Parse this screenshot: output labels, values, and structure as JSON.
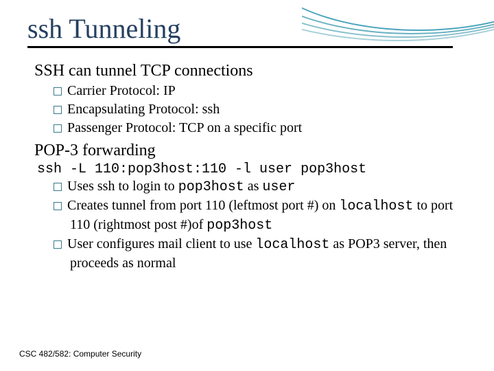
{
  "slide": {
    "title": "ssh Tunneling",
    "section1": {
      "heading": "SSH can tunnel TCP connections",
      "items": [
        "Carrier Protocol: IP",
        "Encapsulating Protocol: ssh",
        "Passenger Protocol: TCP on a specific port"
      ]
    },
    "section2": {
      "heading": "POP-3 forwarding",
      "command": "ssh -L 110:pop3host:110 -l user pop3host",
      "item1_pre": "Uses ssh to login to ",
      "item1_code1": "pop3host",
      "item1_mid": " as ",
      "item1_code2": "user",
      "item2_pre": "Creates tunnel from port 110 (leftmost port #) on ",
      "item2_code1": "localhost",
      "item2_mid": " to port 110 (rightmost post #)of ",
      "item2_code2": "pop3host",
      "item3_pre": "User configures mail client to use ",
      "item3_code1": "localhost",
      "item3_post": " as POP3 server, then proceeds as normal"
    },
    "footer": "CSC 482/582: Computer Security"
  },
  "style": {
    "title_color": "#254061",
    "bullet_border_color": "#3a7a8a",
    "arc_colors": [
      "#a8d0d8",
      "#88c0cc",
      "#6ab2c4",
      "#4aa4bc"
    ],
    "background": "#ffffff",
    "title_fontsize": 40,
    "heading_fontsize": 24,
    "body_fontsize": 20,
    "footer_fontsize": 12,
    "mono_font": "Courier New",
    "serif_font": "Georgia"
  }
}
